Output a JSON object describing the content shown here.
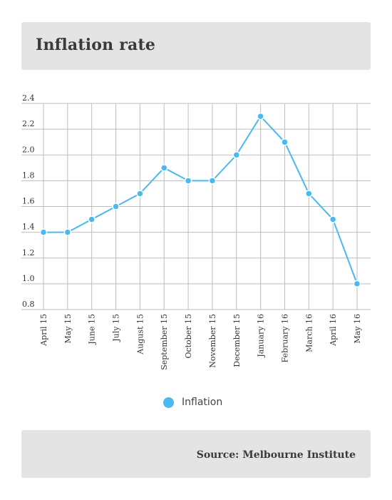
{
  "header": {
    "title": "Inflation rate"
  },
  "footer": {
    "source": "Source: Melbourne Institute"
  },
  "legend": {
    "label": "Inflation"
  },
  "colors": {
    "series": "#4bb8ef",
    "grid": "#bdbdbd",
    "panel": "#e4e4e4"
  },
  "chart_data": {
    "type": "line",
    "title": "",
    "xlabel": "",
    "ylabel": "",
    "categories": [
      "April 15",
      "May 15",
      "June 15",
      "July 15",
      "August 15",
      "September 15",
      "October 15",
      "November 15",
      "December 15",
      "January 16",
      "February 16",
      "March 16",
      "April 16",
      "May 16"
    ],
    "series": [
      {
        "name": "Inflation",
        "values": [
          1.4,
          1.4,
          1.5,
          1.6,
          1.7,
          1.9,
          1.8,
          1.8,
          2.0,
          2.3,
          2.1,
          1.7,
          1.5,
          1.0
        ]
      }
    ],
    "ylim": [
      0.8,
      2.4
    ],
    "yticks": [
      "0.8",
      "1.0",
      "1.2",
      "1.4",
      "1.6",
      "1.8",
      "2.0",
      "2.2",
      "2.4"
    ],
    "grid": true,
    "legend_position": "bottom-center"
  }
}
